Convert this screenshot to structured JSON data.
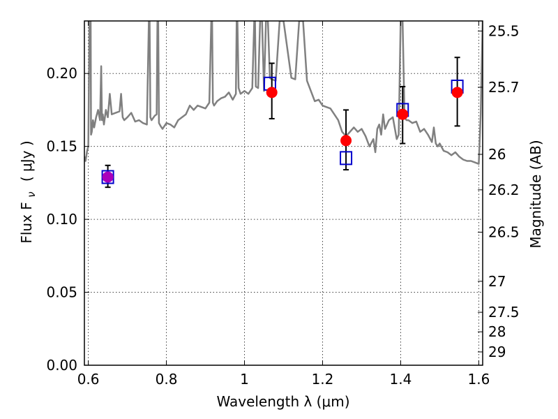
{
  "chart_data": {
    "type": "scatter",
    "xlabel": "Wavelength  λ (μm)",
    "ylabel": "Flux  F",
    "ylabel_subscript": "ν",
    "ylabel_unit": "( μJy )",
    "ylabel_right": "Magnitude (AB)",
    "xlim": [
      0.59,
      1.61
    ],
    "ylim": [
      0.0,
      0.236
    ],
    "grid": true,
    "x_ticks": [
      0.6,
      0.8,
      1.0,
      1.2,
      1.4,
      1.6
    ],
    "x_tick_labels": [
      "0.6",
      "0.8",
      "1",
      "1.2",
      "1.4",
      "1.6"
    ],
    "y_ticks": [
      0.0,
      0.05,
      0.1,
      0.15,
      0.2
    ],
    "y_tick_labels": [
      "0.00",
      "0.05",
      "0.10",
      "0.15",
      "0.20"
    ],
    "right_ticks": [
      25.5,
      25.7,
      26,
      26.2,
      26.5,
      27,
      27.5,
      28,
      29
    ],
    "right_tick_labels": [
      "25.5",
      "25.7",
      "26",
      "26.2",
      "26.5",
      "27",
      "27.5",
      "28",
      "29"
    ],
    "series": [
      {
        "marker": "open-square",
        "color": "#0000cc",
        "x": [
          0.65,
          1.065,
          1.26,
          1.405,
          1.545
        ],
        "y": [
          0.129,
          0.193,
          0.142,
          0.175,
          0.191
        ]
      },
      {
        "marker": "filled-circle",
        "color": "#ff0000",
        "x": [
          0.65,
          1.07,
          1.26,
          1.405,
          1.545
        ],
        "y": [
          0.129,
          0.187,
          0.154,
          0.172,
          0.187
        ],
        "yerr_low": [
          0.122,
          0.169,
          0.134,
          0.152,
          0.164
        ],
        "yerr_high": [
          0.137,
          0.207,
          0.175,
          0.191,
          0.211
        ],
        "first_point_color": "#aa00bb"
      },
      {
        "type": "line",
        "color": "#808080",
        "x": [
          0.59,
          0.593,
          0.597,
          0.6,
          0.603,
          0.606,
          0.607,
          0.609,
          0.612,
          0.615,
          0.62,
          0.625,
          0.63,
          0.633,
          0.635,
          0.637,
          0.64,
          0.645,
          0.65,
          0.655,
          0.66,
          0.67,
          0.68,
          0.684,
          0.686,
          0.688,
          0.692,
          0.7,
          0.71,
          0.72,
          0.73,
          0.74,
          0.75,
          0.755,
          0.757,
          0.759,
          0.762,
          0.77,
          0.775,
          0.777,
          0.779,
          0.781,
          0.785,
          0.79,
          0.8,
          0.81,
          0.82,
          0.83,
          0.84,
          0.85,
          0.86,
          0.87,
          0.88,
          0.9,
          0.91,
          0.915,
          0.917,
          0.919,
          0.922,
          0.93,
          0.94,
          0.95,
          0.96,
          0.97,
          0.978,
          0.98,
          0.982,
          0.985,
          0.99,
          1.0,
          1.01,
          1.02,
          1.025,
          1.027,
          1.029,
          1.035,
          1.04,
          1.045,
          1.05,
          1.055,
          1.06,
          1.065,
          1.07,
          1.08,
          1.09,
          1.1,
          1.12,
          1.13,
          1.14,
          1.15,
          1.16,
          1.17,
          1.18,
          1.19,
          1.2,
          1.21,
          1.22,
          1.23,
          1.24,
          1.25,
          1.26,
          1.27,
          1.28,
          1.29,
          1.3,
          1.31,
          1.32,
          1.33,
          1.335,
          1.34,
          1.345,
          1.35,
          1.355,
          1.36,
          1.37,
          1.38,
          1.39,
          1.395,
          1.4,
          1.405,
          1.41,
          1.415,
          1.42,
          1.43,
          1.44,
          1.45,
          1.46,
          1.47,
          1.48,
          1.485,
          1.49,
          1.495,
          1.5,
          1.51,
          1.52,
          1.53,
          1.54,
          1.55,
          1.56,
          1.57,
          1.58,
          1.59,
          1.6,
          1.605,
          1.61
        ],
        "y": [
          0.143,
          0.14,
          0.147,
          0.15,
          0.236,
          0.236,
          0.158,
          0.16,
          0.168,
          0.163,
          0.17,
          0.175,
          0.168,
          0.205,
          0.168,
          0.172,
          0.165,
          0.175,
          0.17,
          0.186,
          0.172,
          0.173,
          0.174,
          0.186,
          0.178,
          0.17,
          0.168,
          0.17,
          0.173,
          0.167,
          0.168,
          0.166,
          0.165,
          0.236,
          0.236,
          0.17,
          0.168,
          0.171,
          0.172,
          0.236,
          0.236,
          0.166,
          0.164,
          0.162,
          0.166,
          0.165,
          0.163,
          0.168,
          0.17,
          0.172,
          0.178,
          0.175,
          0.178,
          0.176,
          0.18,
          0.236,
          0.236,
          0.18,
          0.178,
          0.181,
          0.183,
          0.184,
          0.187,
          0.182,
          0.186,
          0.236,
          0.236,
          0.19,
          0.186,
          0.188,
          0.186,
          0.19,
          0.236,
          0.236,
          0.191,
          0.19,
          0.236,
          0.236,
          0.188,
          0.236,
          0.236,
          0.197,
          0.196,
          0.195,
          0.236,
          0.236,
          0.197,
          0.196,
          0.236,
          0.236,
          0.195,
          0.188,
          0.181,
          0.182,
          0.178,
          0.177,
          0.176,
          0.172,
          0.168,
          0.16,
          0.157,
          0.16,
          0.163,
          0.16,
          0.162,
          0.157,
          0.15,
          0.155,
          0.146,
          0.162,
          0.165,
          0.158,
          0.172,
          0.162,
          0.168,
          0.17,
          0.155,
          0.158,
          0.236,
          0.236,
          0.17,
          0.168,
          0.168,
          0.166,
          0.167,
          0.16,
          0.162,
          0.158,
          0.153,
          0.163,
          0.152,
          0.15,
          0.152,
          0.147,
          0.146,
          0.144,
          0.146,
          0.143,
          0.141,
          0.14,
          0.14,
          0.139,
          0.138,
          0.172,
          0.236
        ]
      }
    ]
  }
}
